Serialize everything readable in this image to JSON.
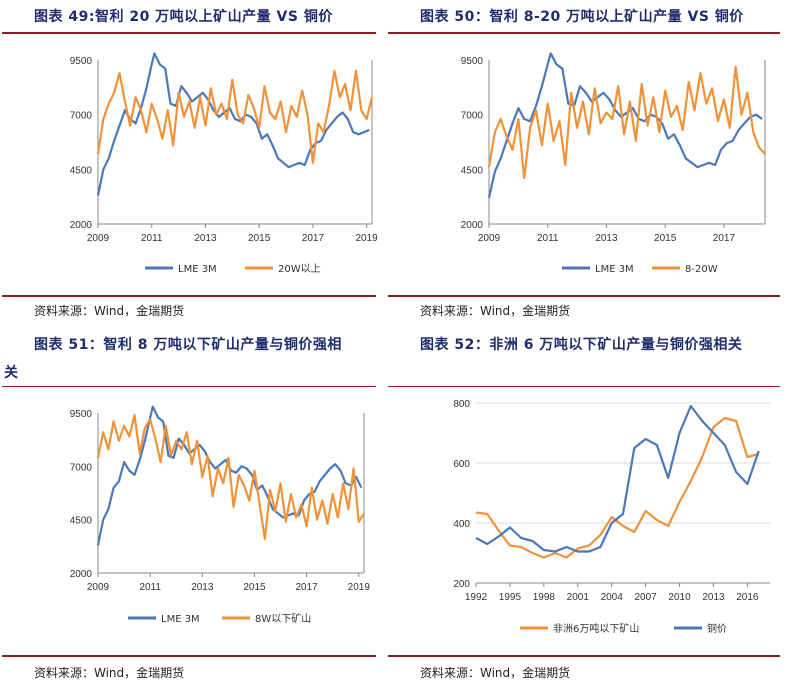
{
  "colors": {
    "lme": "#4a78b8",
    "mine": "#f0923a",
    "title": "#1f2d6e",
    "rule": "#8b1e1e"
  },
  "panels": [
    {
      "title": "图表  49:智利 20 万吨以上矿山产量 VS 铜价",
      "source": "资料来源：Wind，金瑞期货"
    },
    {
      "title": "图表  50：智利 8-20 万吨以上矿山产量 VS 铜价",
      "source": "资料来源：Wind，金瑞期货"
    },
    {
      "title": "图表  51：智利  8  万吨以下矿山产量与铜价强相",
      "title_cont": "关",
      "source": "资料来源：Wind，金瑞期货"
    },
    {
      "title": "图表  52：非洲 6 万吨以下矿山产量与铜价强相关",
      "source": "资料来源：Wind，金瑞期货"
    }
  ],
  "chart_data": [
    {
      "type": "line",
      "title": "图表  49:智利 20 万吨以上矿山产量 VS 铜价",
      "x_ticks": [
        "2009",
        "2011",
        "2013",
        "2015",
        "2017",
        "2019"
      ],
      "y_ticks": [
        "2000",
        "4500",
        "7000",
        "9500"
      ],
      "ylim": [
        2000,
        9500
      ],
      "xlim": [
        2009,
        2019.2
      ],
      "series": [
        {
          "name": "LME 3M",
          "color": "#4a78b8",
          "x": [
            2009.0,
            2009.2,
            2009.4,
            2009.6,
            2009.8,
            2010.0,
            2010.2,
            2010.4,
            2010.6,
            2010.8,
            2011.0,
            2011.1,
            2011.3,
            2011.5,
            2011.7,
            2011.9,
            2012.1,
            2012.3,
            2012.5,
            2012.7,
            2012.9,
            2013.1,
            2013.3,
            2013.5,
            2013.7,
            2013.9,
            2014.1,
            2014.3,
            2014.5,
            2014.7,
            2014.9,
            2015.1,
            2015.3,
            2015.5,
            2015.7,
            2015.9,
            2016.1,
            2016.3,
            2016.5,
            2016.7,
            2016.9,
            2017.1,
            2017.3,
            2017.5,
            2017.7,
            2017.9,
            2018.1,
            2018.3,
            2018.5,
            2018.7,
            2018.9,
            2019.1
          ],
          "values": [
            3300,
            4500,
            5000,
            5800,
            6500,
            7200,
            6800,
            6600,
            7300,
            8200,
            9300,
            9800,
            9300,
            9100,
            7500,
            7400,
            8300,
            8000,
            7600,
            7800,
            8000,
            7700,
            7200,
            6900,
            7100,
            7300,
            6800,
            6700,
            7000,
            6900,
            6600,
            5900,
            6100,
            5600,
            5000,
            4800,
            4600,
            4700,
            4800,
            4700,
            5400,
            5700,
            5800,
            6300,
            6600,
            6900,
            7100,
            6800,
            6200,
            6100,
            6200,
            6300
          ]
        },
        {
          "name": "20W以上",
          "color": "#f0923a",
          "x": [
            2009.0,
            2009.2,
            2009.4,
            2009.6,
            2009.8,
            2010.0,
            2010.2,
            2010.4,
            2010.6,
            2010.8,
            2011.0,
            2011.2,
            2011.4,
            2011.6,
            2011.8,
            2012.0,
            2012.2,
            2012.4,
            2012.6,
            2012.8,
            2013.0,
            2013.2,
            2013.4,
            2013.6,
            2013.8,
            2014.0,
            2014.2,
            2014.4,
            2014.6,
            2014.8,
            2015.0,
            2015.2,
            2015.4,
            2015.6,
            2015.8,
            2016.0,
            2016.2,
            2016.4,
            2016.6,
            2016.8,
            2017.0,
            2017.2,
            2017.4,
            2017.6,
            2017.8,
            2018.0,
            2018.2,
            2018.4,
            2018.6,
            2018.8,
            2019.0,
            2019.2
          ],
          "values": [
            5200,
            6800,
            7500,
            8000,
            8900,
            7600,
            6500,
            7800,
            7200,
            6200,
            7500,
            6800,
            5900,
            7200,
            5600,
            8000,
            6900,
            7600,
            6400,
            7800,
            6500,
            8200,
            7000,
            7500,
            6800,
            8600,
            7000,
            6600,
            7900,
            7300,
            6400,
            8300,
            7100,
            6800,
            7600,
            6200,
            7400,
            6900,
            8100,
            7000,
            4800,
            6600,
            6200,
            7400,
            9000,
            7800,
            8400,
            7200,
            9000,
            7200,
            6800,
            7800
          ]
        }
      ],
      "legend": [
        "LME 3M",
        "20W以上"
      ]
    },
    {
      "type": "line",
      "title": "图表  50：智利 8-20 万吨以上矿山产量 VS 铜价",
      "x_ticks": [
        "2009",
        "2011",
        "2013",
        "2015",
        "2017"
      ],
      "y_ticks": [
        "2000",
        "4500",
        "7000",
        "9500"
      ],
      "ylim": [
        2000,
        9500
      ],
      "xlim": [
        2009,
        2018.4
      ],
      "series": [
        {
          "name": "LME 3M",
          "color": "#4a78b8",
          "x": [
            2009.0,
            2009.2,
            2009.4,
            2009.6,
            2009.8,
            2010.0,
            2010.2,
            2010.4,
            2010.6,
            2010.8,
            2011.0,
            2011.1,
            2011.3,
            2011.5,
            2011.7,
            2011.9,
            2012.1,
            2012.3,
            2012.5,
            2012.7,
            2012.9,
            2013.1,
            2013.3,
            2013.5,
            2013.7,
            2013.9,
            2014.1,
            2014.3,
            2014.5,
            2014.7,
            2014.9,
            2015.1,
            2015.3,
            2015.5,
            2015.7,
            2015.9,
            2016.1,
            2016.3,
            2016.5,
            2016.7,
            2016.9,
            2017.1,
            2017.3,
            2017.5,
            2017.7,
            2017.9,
            2018.1,
            2018.3
          ],
          "values": [
            3200,
            4400,
            5000,
            5800,
            6600,
            7300,
            6800,
            6700,
            7400,
            8300,
            9300,
            9800,
            9300,
            9100,
            7500,
            7400,
            8300,
            8000,
            7600,
            7800,
            8000,
            7700,
            7200,
            6900,
            7100,
            7300,
            6800,
            6700,
            7000,
            6900,
            6600,
            5900,
            6100,
            5600,
            5000,
            4800,
            4600,
            4700,
            4800,
            4700,
            5400,
            5700,
            5800,
            6300,
            6600,
            6900,
            7000,
            6800
          ]
        },
        {
          "name": "8-20W",
          "color": "#f0923a",
          "x": [
            2009.0,
            2009.2,
            2009.4,
            2009.6,
            2009.8,
            2010.0,
            2010.2,
            2010.4,
            2010.6,
            2010.8,
            2011.0,
            2011.2,
            2011.4,
            2011.6,
            2011.8,
            2012.0,
            2012.2,
            2012.4,
            2012.6,
            2012.8,
            2013.0,
            2013.2,
            2013.4,
            2013.6,
            2013.8,
            2014.0,
            2014.2,
            2014.4,
            2014.6,
            2014.8,
            2015.0,
            2015.2,
            2015.4,
            2015.6,
            2015.8,
            2016.0,
            2016.2,
            2016.4,
            2016.6,
            2016.8,
            2017.0,
            2017.2,
            2017.4,
            2017.6,
            2017.8,
            2018.0,
            2018.2,
            2018.4
          ],
          "values": [
            4600,
            6200,
            6800,
            6000,
            5400,
            6800,
            4100,
            6400,
            7200,
            5600,
            7500,
            5800,
            6700,
            4700,
            8000,
            6400,
            7600,
            6100,
            8200,
            6600,
            7100,
            6800,
            8300,
            6100,
            7600,
            5800,
            8400,
            6500,
            7800,
            6200,
            8100,
            6900,
            7400,
            6300,
            8500,
            7200,
            8900,
            7500,
            8200,
            6700,
            7700,
            6400,
            9200,
            7000,
            8000,
            6200,
            5500,
            5200
          ]
        }
      ],
      "legend": [
        "LME 3M",
        "8-20W"
      ]
    },
    {
      "type": "line",
      "title": "图表  51：智利  8  万吨以下矿山产量与铜价强相关",
      "x_ticks": [
        "2009",
        "2011",
        "2013",
        "2015",
        "2017",
        "2019"
      ],
      "y_ticks": [
        "2000",
        "4500",
        "7000",
        "9500"
      ],
      "ylim": [
        2000,
        9500
      ],
      "xlim": [
        2009,
        2019.2
      ],
      "series": [
        {
          "name": "LME 3M",
          "color": "#4a78b8",
          "x": [
            2009.0,
            2009.2,
            2009.4,
            2009.6,
            2009.8,
            2010.0,
            2010.2,
            2010.4,
            2010.6,
            2010.8,
            2011.0,
            2011.1,
            2011.3,
            2011.5,
            2011.7,
            2011.9,
            2012.1,
            2012.3,
            2012.5,
            2012.7,
            2012.9,
            2013.1,
            2013.3,
            2013.5,
            2013.7,
            2013.9,
            2014.1,
            2014.3,
            2014.5,
            2014.7,
            2014.9,
            2015.1,
            2015.3,
            2015.5,
            2015.7,
            2015.9,
            2016.1,
            2016.3,
            2016.5,
            2016.7,
            2016.9,
            2017.1,
            2017.3,
            2017.5,
            2017.7,
            2017.9,
            2018.1,
            2018.3,
            2018.5,
            2018.7,
            2018.9,
            2019.1
          ],
          "values": [
            3300,
            4500,
            5000,
            6000,
            6300,
            7200,
            6800,
            6600,
            7300,
            8200,
            9300,
            9800,
            9300,
            9100,
            7500,
            7400,
            8300,
            8000,
            7600,
            7800,
            8000,
            7700,
            7200,
            6900,
            7100,
            7300,
            6800,
            6700,
            7000,
            6900,
            6600,
            5900,
            6100,
            5600,
            5000,
            4800,
            4600,
            4700,
            4800,
            4700,
            5400,
            5700,
            5800,
            6300,
            6600,
            6900,
            7100,
            6800,
            6200,
            6100,
            6500,
            6000
          ]
        },
        {
          "name": "8W以下矿山",
          "color": "#f0923a",
          "x": [
            2009.0,
            2009.2,
            2009.4,
            2009.6,
            2009.8,
            2010.0,
            2010.2,
            2010.4,
            2010.6,
            2010.8,
            2011.0,
            2011.2,
            2011.4,
            2011.6,
            2011.8,
            2012.0,
            2012.2,
            2012.4,
            2012.6,
            2012.8,
            2013.0,
            2013.2,
            2013.4,
            2013.6,
            2013.8,
            2014.0,
            2014.2,
            2014.4,
            2014.6,
            2014.8,
            2015.0,
            2015.2,
            2015.4,
            2015.6,
            2015.8,
            2016.0,
            2016.2,
            2016.4,
            2016.6,
            2016.8,
            2017.0,
            2017.2,
            2017.4,
            2017.6,
            2017.8,
            2018.0,
            2018.2,
            2018.4,
            2018.6,
            2018.8,
            2019.0,
            2019.2
          ],
          "values": [
            7400,
            8600,
            7800,
            9100,
            8200,
            8900,
            8400,
            9400,
            7600,
            8800,
            9200,
            8300,
            7200,
            8900,
            7500,
            8200,
            7800,
            8600,
            7100,
            8200,
            6500,
            7500,
            5600,
            6900,
            6200,
            7400,
            5100,
            6600,
            6100,
            5400,
            6800,
            5200,
            3600,
            5900,
            4900,
            6200,
            4400,
            5700,
            4600,
            5200,
            4200,
            6000,
            4500,
            5400,
            4300,
            5700,
            4600,
            6200,
            5000,
            6900,
            4400,
            4800
          ]
        }
      ],
      "legend": [
        "LME 3M",
        "8W以下矿山"
      ]
    },
    {
      "type": "line",
      "title": "图表  52：非洲 6 万吨以下矿山产量与铜价强相关",
      "x_ticks": [
        "1992",
        "1995",
        "1998",
        "2001",
        "2004",
        "2007",
        "2010",
        "2013",
        "2016"
      ],
      "y_ticks": [
        "200",
        "400",
        "600",
        "800"
      ],
      "ylim": [
        200,
        800
      ],
      "xlim": [
        1992,
        2018
      ],
      "series": [
        {
          "name": "非洲6万吨以下矿山",
          "color": "#f0923a",
          "x": [
            1992,
            1993,
            1994,
            1995,
            1996,
            1997,
            1998,
            1999,
            2000,
            2001,
            2002,
            2003,
            2004,
            2005,
            2006,
            2007,
            2008,
            2009,
            2010,
            2011,
            2012,
            2013,
            2014,
            2015,
            2016,
            2017
          ],
          "values": [
            435,
            430,
            375,
            325,
            320,
            300,
            285,
            300,
            285,
            315,
            325,
            360,
            420,
            390,
            370,
            440,
            410,
            390,
            470,
            540,
            620,
            720,
            750,
            740,
            620,
            630
          ]
        },
        {
          "name": "铜价",
          "color": "#4a78b8",
          "x": [
            1992,
            1993,
            1994,
            1995,
            1996,
            1997,
            1998,
            1999,
            2000,
            2001,
            2002,
            2003,
            2004,
            2005,
            2006,
            2007,
            2008,
            2009,
            2010,
            2011,
            2012,
            2013,
            2014,
            2015,
            2016,
            2017
          ],
          "values": [
            350,
            330,
            355,
            385,
            350,
            340,
            310,
            305,
            320,
            305,
            305,
            320,
            400,
            430,
            650,
            680,
            660,
            550,
            700,
            790,
            740,
            700,
            660,
            570,
            530,
            640
          ]
        }
      ],
      "legend": [
        "非洲6万吨以下矿山",
        "铜价"
      ]
    }
  ]
}
